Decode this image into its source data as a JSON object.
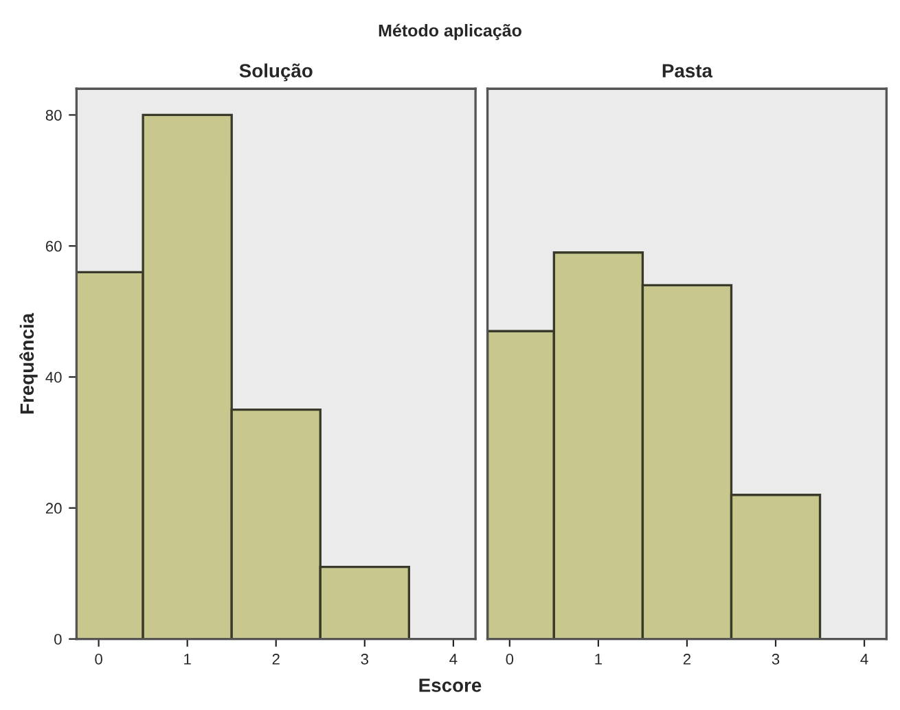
{
  "chart_data": [
    {
      "type": "histogram",
      "title": "Solução",
      "ylabel": "Frequência",
      "xlabel": "Escore",
      "annotations": [
        "Método aplicação"
      ],
      "bins": [
        -0.25,
        0.5,
        1.5,
        2.5,
        3.5
      ],
      "values": [
        56,
        80,
        35,
        11
      ],
      "color": "#c8c88e",
      "xlim": [
        -0.25,
        4.25
      ],
      "xticks": [
        0,
        1,
        2,
        3,
        4
      ],
      "ylim": [
        0,
        84
      ],
      "yticks": [
        0,
        20,
        40,
        60,
        80
      ]
    },
    {
      "type": "histogram",
      "title": "Pasta",
      "bins": [
        -0.25,
        0.5,
        1.5,
        2.5,
        3.5
      ],
      "values": [
        47,
        59,
        54,
        22
      ],
      "color": "#c8c88e",
      "xlim": [
        -0.25,
        4.25
      ],
      "xticks": [
        0,
        1,
        2,
        3,
        4
      ],
      "ylim": [
        0,
        84
      ],
      "yticks": [
        0,
        20,
        40,
        60,
        80
      ],
      "tick_labels": "x"
    }
  ]
}
